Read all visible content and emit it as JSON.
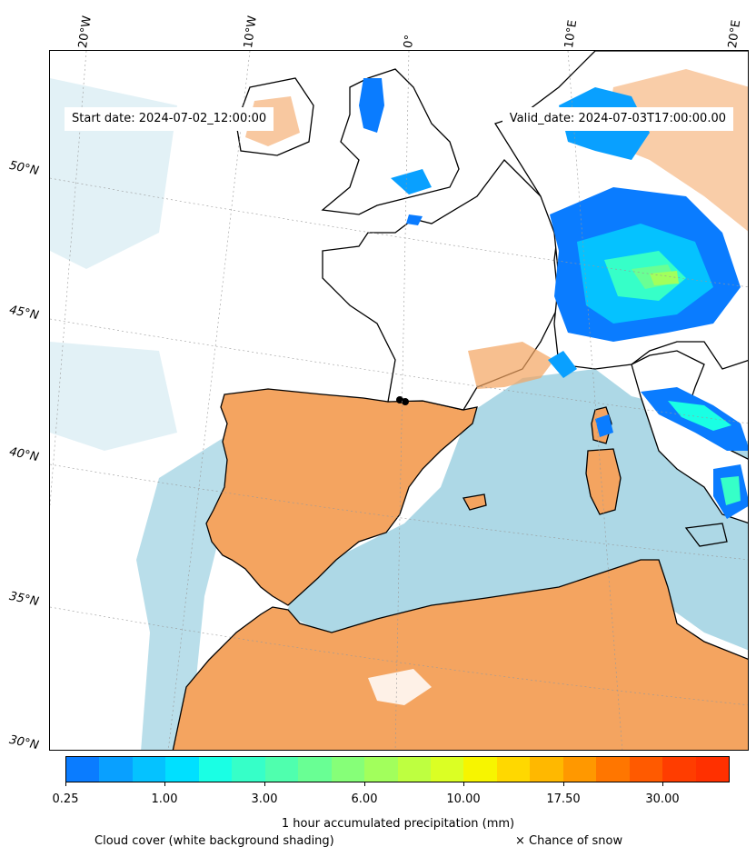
{
  "map": {
    "start_date": "Start date: 2024-07-02_12:00:00",
    "valid_date": "Valid_date: 2024-07-03T17:00:00.00",
    "lat_labels": [
      "50°N",
      "45°N",
      "40°N",
      "35°N",
      "30°N"
    ],
    "lon_labels": [
      "20°W",
      "10°W",
      "0°",
      "10°E",
      "20°E"
    ],
    "colors": {
      "land_clear": "#f4a460",
      "sea_clear": "#add8e6",
      "cloud": "#ffffff",
      "coast": "#000000"
    }
  },
  "colorbar": {
    "title": "1 hour accumulated precipitation (mm)",
    "tick_labels": [
      "0.25",
      "1.00",
      "3.00",
      "6.00",
      "10.00",
      "17.50",
      "30.00"
    ],
    "colors": [
      "#0a7cff",
      "#09a0ff",
      "#05c2ff",
      "#00e0ff",
      "#1affe4",
      "#36ffc8",
      "#4fffae",
      "#69ff94",
      "#86ff78",
      "#a2ff5c",
      "#beff40",
      "#dbff24",
      "#f7f500",
      "#ffd800",
      "#ffb800",
      "#ff9800",
      "#ff7600",
      "#ff5a00",
      "#ff3d00",
      "#ff3000"
    ]
  },
  "legend": {
    "cloud_note": "Cloud cover (white background shading)",
    "snow_note": "× Chance of snow"
  }
}
